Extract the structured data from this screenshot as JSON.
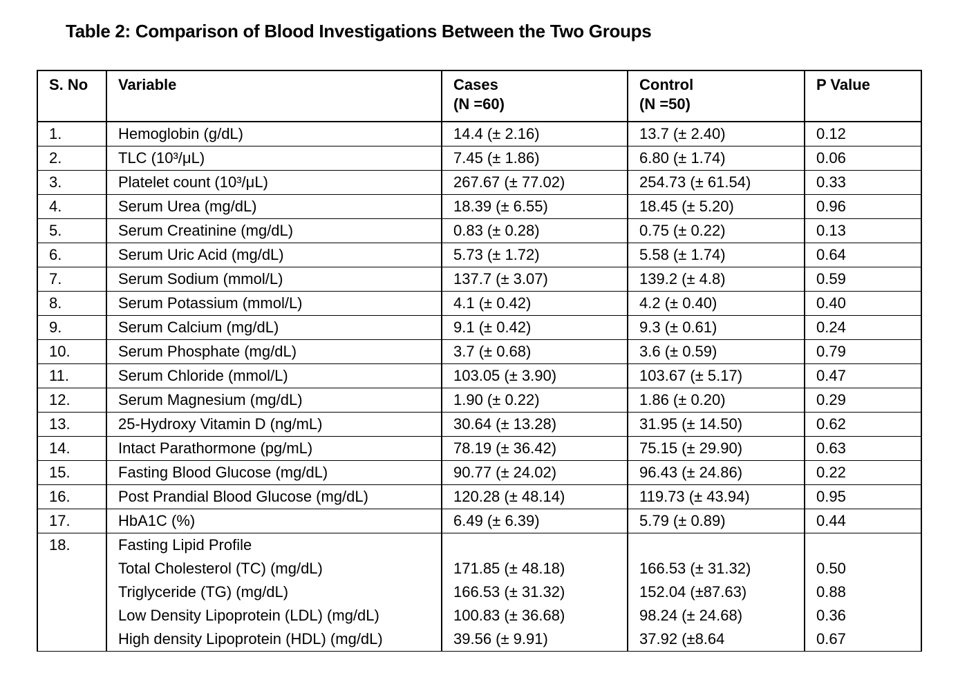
{
  "title": "Table 2: Comparison of Blood Investigations Between the Two Groups",
  "table": {
    "header": [
      "S. No",
      "Variable",
      [
        "Cases",
        "(N =60)"
      ],
      [
        "Control",
        "(N =50)"
      ],
      "P Value"
    ],
    "rows": [
      [
        "1.",
        "Hemoglobin (g/dL)",
        "14.4 (± 2.16)",
        "13.7 (± 2.40)",
        "0.12"
      ],
      [
        "2.",
        "TLC (10³/μL)",
        "7.45 (± 1.86)",
        "6.80 (± 1.74)",
        "0.06"
      ],
      [
        "3.",
        "Platelet count (10³/μL)",
        "267.67 (± 77.02)",
        "254.73 (± 61.54)",
        "0.33"
      ],
      [
        "4.",
        "Serum Urea (mg/dL)",
        "18.39 (± 6.55)",
        "18.45 (± 5.20)",
        "0.96"
      ],
      [
        "5.",
        "Serum Creatinine (mg/dL)",
        "0.83 (± 0.28)",
        "0.75 (± 0.22)",
        "0.13"
      ],
      [
        "6.",
        "Serum Uric Acid (mg/dL)",
        "5.73 (± 1.72)",
        "5.58 (± 1.74)",
        "0.64"
      ],
      [
        "7.",
        "Serum Sodium (mmol/L)",
        "137.7 (± 3.07)",
        "139.2 (± 4.8)",
        "0.59"
      ],
      [
        "8.",
        "Serum Potassium (mmol/L)",
        "4.1 (± 0.42)",
        "4.2 (± 0.40)",
        "0.40"
      ],
      [
        "9.",
        "Serum Calcium (mg/dL)",
        "9.1 (± 0.42)",
        "9.3 (± 0.61)",
        "0.24"
      ],
      [
        "10.",
        "Serum Phosphate (mg/dL)",
        "3.7 (± 0.68)",
        "3.6 (± 0.59)",
        "0.79"
      ],
      [
        "11.",
        "Serum Chloride (mmol/L)",
        "103.05 (± 3.90)",
        "103.67 (± 5.17)",
        "0.47"
      ],
      [
        "12.",
        "Serum Magnesium (mg/dL)",
        "1.90 (± 0.22)",
        "1.86 (± 0.20)",
        "0.29"
      ],
      [
        "13.",
        "25-Hydroxy Vitamin D (ng/mL)",
        "30.64 (± 13.28)",
        "31.95 (± 14.50)",
        "0.62"
      ],
      [
        "14.",
        "Intact Parathormone (pg/mL)",
        "78.19 (± 36.42)",
        "75.15 (± 29.90)",
        "0.63"
      ],
      [
        "15.",
        "Fasting Blood Glucose (mg/dL)",
        "90.77 (± 24.02)",
        "96.43 (± 24.86)",
        "0.22"
      ],
      [
        "16.",
        "Post Prandial Blood Glucose (mg/dL)",
        "120.28 (± 48.14)",
        "119.73 (± 43.94)",
        "0.95"
      ],
      [
        "17.",
        "HbA1C (%)",
        "6.49 (± 6.39)",
        "5.79 (± 0.89)",
        "0.44"
      ]
    ],
    "group": {
      "number": "18.",
      "label": "Fasting Lipid Profile",
      "rows": [
        [
          "Total Cholesterol (TC) (mg/dL)",
          "171.85 (± 48.18)",
          "166.53 (± 31.32)",
          "0.50"
        ],
        [
          "Triglyceride (TG) (mg/dL)",
          "166.53 (± 31.32)",
          "152.04 (±87.63)",
          "0.88"
        ],
        [
          "Low Density Lipoprotein (LDL) (mg/dL)",
          "100.83 (± 36.68)",
          "98.24 (± 24.68)",
          "0.36"
        ],
        [
          "High density Lipoprotein (HDL) (mg/dL)",
          "39.56 (± 9.91)",
          "37.92 (±8.64",
          "0.67"
        ]
      ]
    }
  }
}
